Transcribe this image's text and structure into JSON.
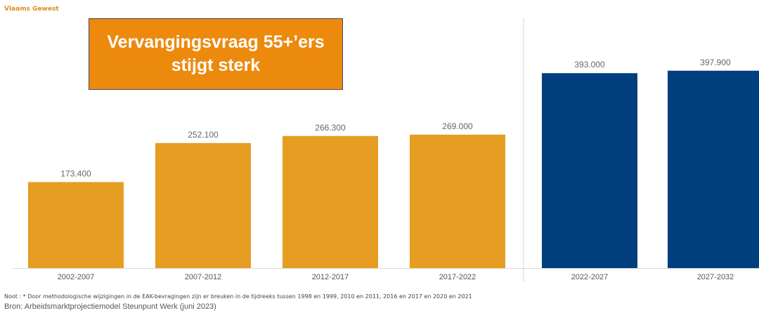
{
  "region_label": "Vlaams Gewest",
  "headline": "Vervangingsvraag 55+’ers\nstijgt sterk",
  "colors": {
    "historic": "#e59d22",
    "projection": "#003f7e",
    "headline_bg": "#ec8a0e"
  },
  "chart_data": {
    "type": "bar",
    "categories": [
      "2002-2007",
      "2007-2012",
      "2012-2017",
      "2017-2022",
      "2022-2027",
      "2027-2032"
    ],
    "values": [
      173400,
      252100,
      266300,
      269000,
      393000,
      397900
    ],
    "value_labels": [
      "173.400",
      "252.100",
      "266.300",
      "269.000",
      "393.000",
      "397.900"
    ],
    "groups": [
      "historic",
      "historic",
      "historic",
      "historic",
      "projection",
      "projection"
    ],
    "title": "",
    "xlabel": "",
    "ylabel": "",
    "ylim": [
      0,
      450000
    ],
    "grid": false,
    "divider_after_index": 3
  },
  "footer": {
    "note": "Noot : * Door methodologische wijzigingen in de EAK-bevragingen zijn er breuken in de tijdreeks tussen 1998 en 1999, 2010 en 2011, 2016 en 2017 en 2020 en 2021",
    "source": "Bron: Arbeidsmarktprojectiemodel Steunpunt Werk (juni 2023)"
  }
}
